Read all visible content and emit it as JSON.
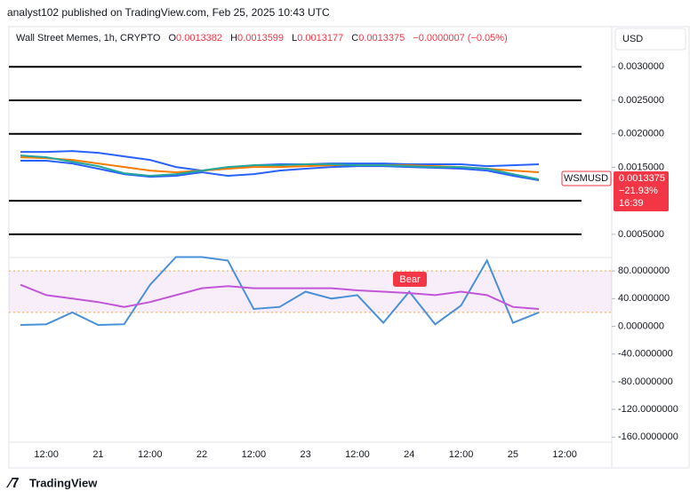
{
  "header": {
    "title": "analyst102 published on TradingView.com, Feb 25, 2025 10:43 UTC"
  },
  "legend": {
    "symbol": "Wall Street Memes, 1h, CRYPTO",
    "open_label": "O",
    "open": "0.0013382",
    "high_label": "H",
    "high": "0.0013599",
    "low_label": "L",
    "low": "0.0013177",
    "close_label": "C",
    "close": "0.0013375",
    "change": "−0.0000007 (−0.05%)"
  },
  "currency": "USD",
  "price_tag": {
    "symbol": "WSMUSD",
    "price": "0.0013375",
    "change": "−21.93%",
    "countdown": "16:39"
  },
  "annotation": "Bear",
  "footer": {
    "brand": "TradingView"
  },
  "chart_data": [
    {
      "type": "line",
      "categories": [
        null,
        "12:00",
        null,
        "21",
        null,
        "12:00",
        null,
        "22",
        null,
        "12:00",
        null,
        "23",
        null,
        "12:00",
        null,
        "24",
        null,
        "12:00",
        null,
        "25",
        null,
        "12:00"
      ],
      "ylim": [
        0.00022,
        0.0036
      ],
      "yticks": [
        {
          "value": 0.003,
          "label": "0.0030000"
        },
        {
          "value": 0.0025,
          "label": "0.0025000"
        },
        {
          "value": 0.002,
          "label": "0.0020000"
        },
        {
          "value": 0.0015,
          "label": "0.0015000"
        },
        {
          "value": 0.0005,
          "label": "0.0005000"
        }
      ],
      "levels": [
        0.003,
        0.0025,
        0.002,
        0.001,
        0.0005
      ],
      "series": [
        {
          "color": "#2962ff",
          "values": [
            0.00173,
            0.00173,
            0.001743,
            0.001717,
            0.001664,
            0.001611,
            0.001505,
            0.001452,
            0.001479,
            0.001531,
            0.001545,
            0.001545,
            0.001558,
            0.001558,
            0.001558,
            0.001545,
            0.001545,
            0.001545,
            0.001518,
            0.001531,
            0.001545,
            null
          ]
        },
        {
          "color": "#f57c00",
          "values": [
            0.00165,
            0.001637,
            0.001611,
            0.001558,
            0.001505,
            0.001452,
            0.001426,
            0.001452,
            0.001479,
            0.001505,
            0.001505,
            0.001518,
            0.001531,
            0.001531,
            0.001531,
            0.001531,
            0.001518,
            0.001505,
            0.001479,
            0.001452,
            0.001426,
            null
          ]
        },
        {
          "color": "#2962ff",
          "values": [
            0.001598,
            0.001598,
            0.001558,
            0.001479,
            0.001399,
            0.001359,
            0.001373,
            0.001426,
            0.001373,
            0.001399,
            0.001452,
            0.001479,
            0.001505,
            0.001518,
            0.001518,
            0.001505,
            0.001492,
            0.001479,
            0.001452,
            0.001373,
            0.001307,
            null
          ]
        },
        {
          "color": "#26a69a",
          "values": [
            0.001677,
            0.00165,
            0.001584,
            0.001518,
            0.001412,
            0.001373,
            0.001399,
            0.001452,
            0.001505,
            0.001531,
            0.001531,
            0.001545,
            0.001545,
            0.001531,
            0.001531,
            0.001518,
            0.001505,
            0.001505,
            0.001479,
            0.001399,
            0.00132,
            null
          ]
        }
      ]
    },
    {
      "type": "line",
      "ylim": [
        -166,
        93
      ],
      "yticks": [
        {
          "value": 80,
          "label": "80.0000000"
        },
        {
          "value": 40,
          "label": "40.0000000"
        },
        {
          "value": 0,
          "label": "0.0000000"
        },
        {
          "value": -40,
          "label": "-40.0000000"
        },
        {
          "value": -80,
          "label": "-80.0000000"
        },
        {
          "value": -120,
          "label": "-120.0000000"
        },
        {
          "value": -160,
          "label": "-160.0000000"
        }
      ],
      "band": [
        20,
        80
      ],
      "series": [
        {
          "color": "#4a90d9",
          "values": [
            2,
            3,
            20,
            2,
            3,
            60,
            100,
            100,
            95,
            25,
            28,
            50,
            40,
            45,
            5,
            50,
            3,
            30,
            95,
            5,
            20,
            null
          ]
        },
        {
          "color": "#c156d8",
          "values": [
            60,
            45,
            40,
            35,
            28,
            35,
            45,
            55,
            58,
            55,
            55,
            55,
            55,
            52,
            50,
            48,
            45,
            50,
            45,
            28,
            25,
            null
          ]
        }
      ]
    }
  ]
}
